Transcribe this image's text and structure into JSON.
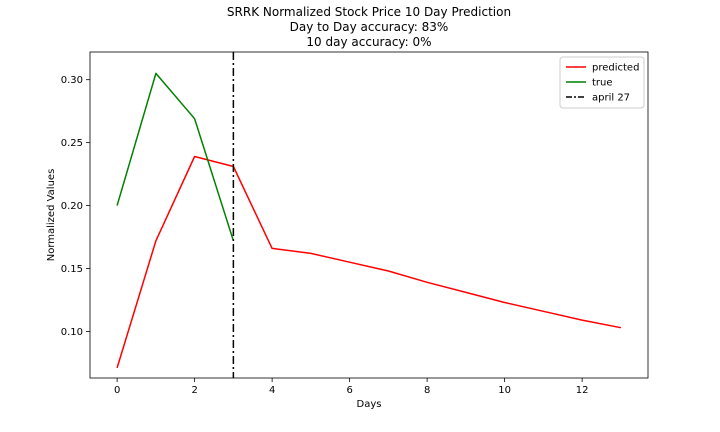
{
  "chart_data": {
    "type": "line",
    "title_lines": [
      "SRRK Normalized Stock Price 10 Day Prediction",
      "Day to Day accuracy: 83%",
      "10 day accuracy: 0%"
    ],
    "xlabel": "Days",
    "ylabel": "Normalized Values",
    "xlim": [
      -0.7,
      13.7
    ],
    "ylim": [
      0.063,
      0.322
    ],
    "xticks": [
      0,
      2,
      4,
      6,
      8,
      10,
      12
    ],
    "xtick_labels": [
      "0",
      "2",
      "4",
      "6",
      "8",
      "10",
      "12"
    ],
    "yticks": [
      0.1,
      0.15,
      0.2,
      0.25,
      0.3
    ],
    "ytick_labels": [
      "0.10",
      "0.15",
      "0.20",
      "0.25",
      "0.30"
    ],
    "series": [
      {
        "name": "predicted",
        "color": "#ff0000",
        "x": [
          0,
          1,
          2,
          3,
          4,
          5,
          6,
          7,
          8,
          9,
          10,
          11,
          12,
          13
        ],
        "y": [
          0.071,
          0.172,
          0.239,
          0.231,
          0.166,
          0.162,
          0.155,
          0.148,
          0.139,
          0.131,
          0.123,
          0.116,
          0.109,
          0.103
        ]
      },
      {
        "name": "true",
        "color": "#008000",
        "x": [
          0,
          1,
          2,
          3
        ],
        "y": [
          0.2,
          0.305,
          0.269,
          0.172
        ]
      }
    ],
    "vline": {
      "name": "april 27",
      "x": 3,
      "color": "#000000",
      "style": "dash-dot"
    },
    "legend_position": "upper-right"
  }
}
